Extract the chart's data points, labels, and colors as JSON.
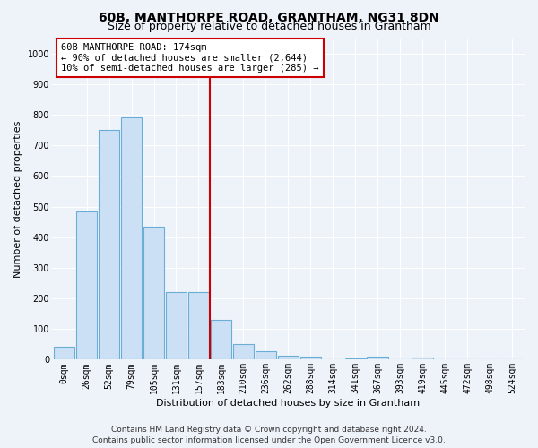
{
  "title": "60B, MANTHORPE ROAD, GRANTHAM, NG31 8DN",
  "subtitle": "Size of property relative to detached houses in Grantham",
  "xlabel": "Distribution of detached houses by size in Grantham",
  "ylabel": "Number of detached properties",
  "categories": [
    "0sqm",
    "26sqm",
    "52sqm",
    "79sqm",
    "105sqm",
    "131sqm",
    "157sqm",
    "183sqm",
    "210sqm",
    "236sqm",
    "262sqm",
    "288sqm",
    "314sqm",
    "341sqm",
    "367sqm",
    "393sqm",
    "419sqm",
    "445sqm",
    "472sqm",
    "498sqm",
    "524sqm"
  ],
  "values": [
    42,
    485,
    750,
    790,
    435,
    220,
    220,
    130,
    52,
    27,
    13,
    10,
    0,
    5,
    10,
    0,
    8,
    0,
    0,
    0,
    0
  ],
  "bar_color": "#cce0f5",
  "bar_edge_color": "#6aaed6",
  "vline_x": 7.5,
  "vline_color": "#cc0000",
  "annotation_text": "60B MANTHORPE ROAD: 174sqm\n← 90% of detached houses are smaller (2,644)\n10% of semi-detached houses are larger (285) →",
  "annotation_box_facecolor": "#ffffff",
  "annotation_box_edgecolor": "#cc0000",
  "background_color": "#eef2f9",
  "grid_color": "#ffffff",
  "footer_line1": "Contains HM Land Registry data © Crown copyright and database right 2024.",
  "footer_line2": "Contains public sector information licensed under the Open Government Licence v3.0.",
  "ylim": [
    0,
    1050
  ],
  "yticks": [
    0,
    100,
    200,
    300,
    400,
    500,
    600,
    700,
    800,
    900,
    1000
  ],
  "title_fontsize": 10,
  "subtitle_fontsize": 9,
  "axis_label_fontsize": 8,
  "tick_fontsize": 7,
  "annotation_fontsize": 7.5,
  "footer_fontsize": 6.5
}
